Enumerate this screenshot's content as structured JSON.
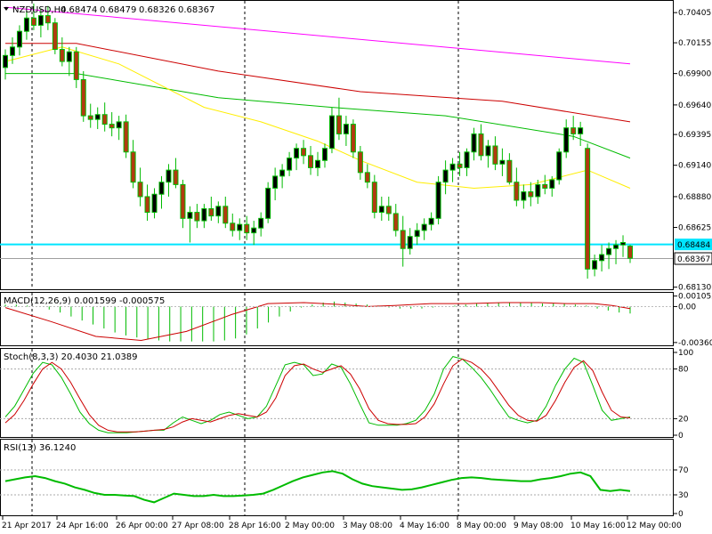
{
  "chart_data": [
    {
      "type": "candlestick",
      "header": {
        "symbol_label": "NZDUSD,H4",
        "open": "0.68474",
        "high": "0.68479",
        "low": "0.68326",
        "close": "0.68367"
      },
      "ylim": [
        0.6812,
        0.7048
      ],
      "y_ticks": [
        "0.70405",
        "0.70155",
        "0.69900",
        "0.69640",
        "0.69395",
        "0.69140",
        "0.68880",
        "0.68625",
        "0.68130"
      ],
      "price_levels": {
        "horizontal_line": "0.68484",
        "last_price": "0.68367"
      },
      "x_ticks": [
        "21 Apr 2017",
        "24 Apr 16:00",
        "26 Apr 00:00",
        "27 Apr 08:00",
        "28 Apr 16:00",
        "2 May 00:00",
        "3 May 08:00",
        "4 May 16:00",
        "8 May 00:00",
        "9 May 08:00",
        "10 May 16:00",
        "12 May 00:00"
      ],
      "candles": [
        [
          0.6995,
          0.701,
          0.6985,
          0.7005
        ],
        [
          0.7005,
          0.702,
          0.6998,
          0.7012
        ],
        [
          0.7012,
          0.703,
          0.7005,
          0.7025
        ],
        [
          0.7025,
          0.7042,
          0.7018,
          0.7036
        ],
        [
          0.7036,
          0.7048,
          0.7026,
          0.703
        ],
        [
          0.703,
          0.7044,
          0.702,
          0.7038
        ],
        [
          0.7038,
          0.7046,
          0.7026,
          0.7032
        ],
        [
          0.7032,
          0.7036,
          0.7006,
          0.701
        ],
        [
          0.701,
          0.702,
          0.6996,
          0.7
        ],
        [
          0.7,
          0.7012,
          0.6988,
          0.7008
        ],
        [
          0.7008,
          0.7012,
          0.6978,
          0.6985
        ],
        [
          0.6985,
          0.6992,
          0.695,
          0.6955
        ],
        [
          0.6955,
          0.6965,
          0.6945,
          0.6952
        ],
        [
          0.6952,
          0.6962,
          0.6944,
          0.6956
        ],
        [
          0.6956,
          0.6966,
          0.6942,
          0.6948
        ],
        [
          0.6948,
          0.6958,
          0.6938,
          0.6945
        ],
        [
          0.6945,
          0.6955,
          0.6935,
          0.695
        ],
        [
          0.695,
          0.6956,
          0.692,
          0.6925
        ],
        [
          0.6925,
          0.6935,
          0.6895,
          0.69
        ],
        [
          0.69,
          0.6912,
          0.688,
          0.6888
        ],
        [
          0.6888,
          0.6898,
          0.6868,
          0.6875
        ],
        [
          0.6875,
          0.6895,
          0.687,
          0.689
        ],
        [
          0.689,
          0.6905,
          0.6878,
          0.69
        ],
        [
          0.69,
          0.6915,
          0.6888,
          0.691
        ],
        [
          0.691,
          0.692,
          0.6895,
          0.6898
        ],
        [
          0.6898,
          0.6902,
          0.6862,
          0.687
        ],
        [
          0.687,
          0.688,
          0.685,
          0.6875
        ],
        [
          0.6875,
          0.6882,
          0.6862,
          0.6868
        ],
        [
          0.6868,
          0.6882,
          0.6862,
          0.6878
        ],
        [
          0.6878,
          0.6888,
          0.6868,
          0.6872
        ],
        [
          0.6872,
          0.6884,
          0.6866,
          0.688
        ],
        [
          0.688,
          0.6888,
          0.6862,
          0.6866
        ],
        [
          0.6866,
          0.6874,
          0.6855,
          0.686
        ],
        [
          0.686,
          0.687,
          0.6852,
          0.6865
        ],
        [
          0.6865,
          0.6872,
          0.6852,
          0.6858
        ],
        [
          0.6858,
          0.6868,
          0.6848,
          0.6862
        ],
        [
          0.6862,
          0.6875,
          0.6855,
          0.687
        ],
        [
          0.687,
          0.69,
          0.6866,
          0.6895
        ],
        [
          0.6895,
          0.6912,
          0.6885,
          0.6905
        ],
        [
          0.6905,
          0.6915,
          0.6895,
          0.691
        ],
        [
          0.691,
          0.6925,
          0.6905,
          0.692
        ],
        [
          0.692,
          0.6932,
          0.691,
          0.6928
        ],
        [
          0.6928,
          0.6935,
          0.6915,
          0.6922
        ],
        [
          0.6922,
          0.693,
          0.6906,
          0.6912
        ],
        [
          0.6912,
          0.6925,
          0.6905,
          0.6918
        ],
        [
          0.6918,
          0.6932,
          0.6912,
          0.6928
        ],
        [
          0.6928,
          0.6962,
          0.6924,
          0.6955
        ],
        [
          0.6955,
          0.697,
          0.6935,
          0.694
        ],
        [
          0.694,
          0.6955,
          0.693,
          0.6948
        ],
        [
          0.6948,
          0.6952,
          0.692,
          0.6925
        ],
        [
          0.6925,
          0.693,
          0.6902,
          0.6908
        ],
        [
          0.6908,
          0.6915,
          0.6895,
          0.69
        ],
        [
          0.69,
          0.6906,
          0.687,
          0.6875
        ],
        [
          0.6875,
          0.6888,
          0.6868,
          0.688
        ],
        [
          0.688,
          0.6888,
          0.6868,
          0.6874
        ],
        [
          0.6874,
          0.6882,
          0.6855,
          0.686
        ],
        [
          0.686,
          0.6872,
          0.683,
          0.6845
        ],
        [
          0.6845,
          0.6862,
          0.684,
          0.6855
        ],
        [
          0.6855,
          0.6866,
          0.6848,
          0.686
        ],
        [
          0.686,
          0.687,
          0.6852,
          0.6865
        ],
        [
          0.6865,
          0.6875,
          0.686,
          0.687
        ],
        [
          0.687,
          0.6905,
          0.6865,
          0.69
        ],
        [
          0.69,
          0.6918,
          0.689,
          0.691
        ],
        [
          0.691,
          0.692,
          0.69,
          0.6915
        ],
        [
          0.6915,
          0.6925,
          0.6905,
          0.6912
        ],
        [
          0.6912,
          0.6928,
          0.6905,
          0.6925
        ],
        [
          0.6925,
          0.6945,
          0.6918,
          0.694
        ],
        [
          0.694,
          0.6948,
          0.6918,
          0.6922
        ],
        [
          0.6922,
          0.6935,
          0.6912,
          0.693
        ],
        [
          0.693,
          0.6938,
          0.691,
          0.6915
        ],
        [
          0.6915,
          0.6928,
          0.6905,
          0.6918
        ],
        [
          0.6918,
          0.6924,
          0.6898,
          0.69
        ],
        [
          0.69,
          0.6912,
          0.688,
          0.6885
        ],
        [
          0.6885,
          0.6898,
          0.6878,
          0.6892
        ],
        [
          0.6892,
          0.69,
          0.688,
          0.6888
        ],
        [
          0.6888,
          0.6902,
          0.6882,
          0.6898
        ],
        [
          0.6898,
          0.6906,
          0.689,
          0.6895
        ],
        [
          0.6895,
          0.6905,
          0.6888,
          0.6902
        ],
        [
          0.6902,
          0.6928,
          0.6898,
          0.6925
        ],
        [
          0.6925,
          0.6952,
          0.692,
          0.6945
        ],
        [
          0.6945,
          0.6955,
          0.6935,
          0.694
        ],
        [
          0.694,
          0.695,
          0.693,
          0.6945
        ],
        [
          0.6928,
          0.6932,
          0.682,
          0.6828
        ],
        [
          0.6828,
          0.684,
          0.6822,
          0.6835
        ],
        [
          0.6835,
          0.6848,
          0.6826,
          0.684
        ],
        [
          0.684,
          0.685,
          0.6828,
          0.6845
        ],
        [
          0.6845,
          0.6852,
          0.6832,
          0.6848
        ],
        [
          0.6848,
          0.6856,
          0.6838,
          0.685
        ],
        [
          0.6847,
          0.6848,
          0.6833,
          0.6837
        ]
      ],
      "moving_averages": [
        {
          "color": "#ff00ff",
          "points": [
            [
              0,
              0.7045
            ],
            [
              88,
              0.6998
            ]
          ]
        },
        {
          "color": "#cc0000",
          "points": [
            [
              0,
              0.7015
            ],
            [
              10,
              0.7015
            ],
            [
              30,
              0.6992
            ],
            [
              50,
              0.6975
            ],
            [
              70,
              0.6967
            ],
            [
              88,
              0.695
            ]
          ]
        },
        {
          "color": "#00bb00",
          "points": [
            [
              0,
              0.699
            ],
            [
              10,
              0.699
            ],
            [
              30,
              0.697
            ],
            [
              46,
              0.6962
            ],
            [
              62,
              0.6955
            ],
            [
              80,
              0.6938
            ],
            [
              88,
              0.692
            ]
          ]
        },
        {
          "color": "#ffee00",
          "points": [
            [
              0,
              0.7
            ],
            [
              8,
              0.7012
            ],
            [
              16,
              0.6998
            ],
            [
              28,
              0.6962
            ],
            [
              36,
              0.695
            ],
            [
              44,
              0.6934
            ],
            [
              50,
              0.6918
            ],
            [
              58,
              0.69
            ],
            [
              66,
              0.6895
            ],
            [
              74,
              0.6898
            ],
            [
              82,
              0.691
            ],
            [
              88,
              0.6895
            ]
          ]
        }
      ]
    },
    {
      "type": "histogram",
      "label": "MACD(12,26,9) 0.001599 -0.000575",
      "ylim": [
        -0.0038,
        0.0012
      ],
      "y_ticks": [
        "0.001052",
        "0.00",
        "-0.003609"
      ],
      "macd_values": [
        0.0002,
        0.0002,
        0.0001,
        0.0,
        -0.0003,
        -0.0006,
        -0.001,
        -0.0014,
        -0.0018,
        -0.0022,
        -0.0026,
        -0.0029,
        -0.0031,
        -0.0033,
        -0.0034,
        -0.0035,
        -0.0035,
        -0.0035,
        -0.0035,
        -0.0035,
        -0.0034,
        -0.0032,
        -0.0028,
        -0.0022,
        -0.0016,
        -0.001,
        -0.0005,
        -0.0001,
        0.0002,
        0.0004,
        0.0005,
        0.0004,
        0.0003,
        0.0002,
        0.0001,
        -0.0001,
        -0.0002,
        -0.0002,
        -0.0002,
        -0.0001,
        0.0,
        0.0001,
        0.0002,
        0.0003,
        0.0004,
        0.0004,
        0.0004,
        0.0004,
        0.0004,
        0.0003,
        0.0003,
        0.0003,
        0.0002,
        0.0001,
        -0.0002,
        -0.0004,
        -0.0006,
        -0.0007
      ],
      "signal_points": [
        [
          0,
          -0.0001
        ],
        [
          10,
          -0.0015
        ],
        [
          20,
          -0.003
        ],
        [
          30,
          -0.0034
        ],
        [
          40,
          -0.0025
        ],
        [
          50,
          -0.0008
        ],
        [
          58,
          0.0003
        ],
        [
          66,
          0.0004
        ],
        [
          74,
          0.0002
        ],
        [
          80,
          0.0
        ],
        [
          86,
          0.0001
        ],
        [
          94,
          0.0003
        ],
        [
          102,
          0.0003
        ],
        [
          110,
          0.0004
        ],
        [
          118,
          0.0004
        ],
        [
          124,
          0.0003
        ],
        [
          130,
          0.0003
        ],
        [
          134,
          0.0001
        ],
        [
          138,
          -0.0002
        ]
      ],
      "signal_color": "#cc0000",
      "hist_color": "#00bb00"
    },
    {
      "type": "line",
      "label": "Stoch(8,3,3) 20.4030 21.0389",
      "ylim": [
        0,
        100
      ],
      "y_ticks": [
        "100",
        "80",
        "20",
        "0"
      ],
      "levels": [
        80,
        20
      ],
      "series": [
        {
          "color": "#00bb00",
          "values": [
            22,
            35,
            55,
            75,
            88,
            85,
            70,
            50,
            28,
            14,
            6,
            3,
            3,
            3,
            4,
            5,
            6,
            6,
            15,
            22,
            18,
            14,
            18,
            25,
            28,
            24,
            20,
            22,
            35,
            60,
            85,
            88,
            85,
            72,
            74,
            86,
            82,
            62,
            38,
            15,
            12,
            12,
            12,
            14,
            18,
            30,
            50,
            80,
            95,
            92,
            82,
            70,
            55,
            38,
            22,
            18,
            15,
            18,
            35,
            60,
            80,
            93,
            88,
            60,
            30,
            18,
            20,
            22
          ]
        },
        {
          "color": "#cc0000",
          "values": [
            15,
            25,
            42,
            62,
            80,
            88,
            80,
            64,
            44,
            25,
            12,
            6,
            4,
            4,
            4,
            5,
            6,
            7,
            10,
            16,
            20,
            18,
            16,
            20,
            24,
            26,
            24,
            22,
            28,
            45,
            72,
            84,
            86,
            80,
            76,
            80,
            84,
            74,
            56,
            32,
            18,
            14,
            13,
            13,
            14,
            22,
            38,
            62,
            84,
            92,
            88,
            80,
            68,
            52,
            36,
            24,
            18,
            17,
            24,
            42,
            64,
            82,
            90,
            78,
            52,
            30,
            22,
            21
          ]
        }
      ]
    },
    {
      "type": "line",
      "label": "RSI(13) 36.1240",
      "ylim": [
        0,
        100
      ],
      "y_ticks": [
        "70",
        "30",
        "0"
      ],
      "levels": [
        70,
        30
      ],
      "series": [
        {
          "color": "#00bb00",
          "values": [
            52,
            55,
            58,
            60,
            57,
            52,
            48,
            42,
            38,
            33,
            30,
            30,
            29,
            28,
            22,
            18,
            25,
            32,
            30,
            28,
            28,
            30,
            28,
            28,
            29,
            30,
            32,
            38,
            45,
            52,
            58,
            62,
            66,
            68,
            64,
            55,
            48,
            44,
            42,
            40,
            38,
            39,
            42,
            46,
            50,
            54,
            57,
            58,
            57,
            55,
            54,
            53,
            52,
            52,
            55,
            57,
            60,
            64,
            66,
            60,
            38,
            36,
            38,
            36
          ]
        }
      ]
    }
  ]
}
